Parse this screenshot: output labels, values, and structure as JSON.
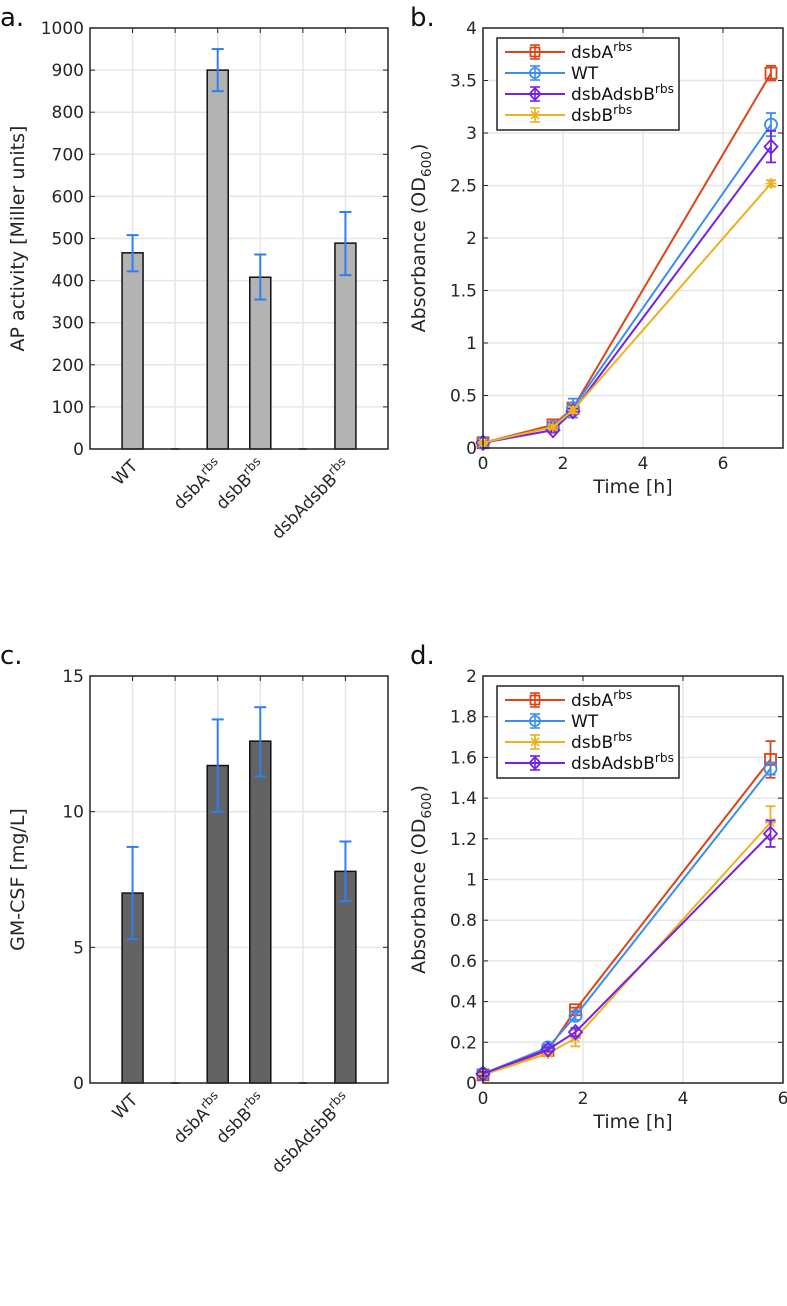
{
  "chart_data": [
    {
      "panel_label": "a.",
      "type": "bar",
      "ylabel": "AP activity [Miller units]",
      "ylim": [
        0,
        1000
      ],
      "yticks": [
        0,
        100,
        200,
        300,
        400,
        500,
        600,
        700,
        800,
        900,
        1000
      ],
      "categories": [
        {
          "base": "WT",
          "sup": ""
        },
        {
          "base": "",
          "sup": ""
        },
        {
          "base": "dsbA",
          "sup": "rbs"
        },
        {
          "base": "dsbB",
          "sup": "rbs"
        },
        {
          "base": "",
          "sup": ""
        },
        {
          "base": "dsbAdsbB",
          "sup": "rbs"
        }
      ],
      "values": [
        466,
        0,
        900,
        408,
        0,
        489
      ],
      "err_low": [
        422,
        0,
        850,
        355,
        0,
        413
      ],
      "err_high": [
        508,
        0,
        950,
        462,
        0,
        563
      ],
      "bar_color": "#b3b3b3",
      "error_color": "#2f7fee",
      "grid": true
    },
    {
      "panel_label": "b.",
      "type": "line",
      "xlabel": "Time [h]",
      "ylabel": {
        "base": "Absorbance (OD",
        "sub": "600",
        "end": ")"
      },
      "xlim": [
        0,
        7.5
      ],
      "ylim": [
        0,
        4
      ],
      "xticks": [
        0,
        2,
        4,
        6
      ],
      "yticks": [
        0,
        0.5,
        1,
        1.5,
        2,
        2.5,
        3,
        3.5,
        4
      ],
      "legend_position": "top-left",
      "grid": true,
      "series": [
        {
          "name": {
            "base": "dsbA",
            "sup": "rbs"
          },
          "color": "#dd4418",
          "marker": "square",
          "x": [
            0,
            1.75,
            2.25,
            7.2
          ],
          "y": [
            0.05,
            0.22,
            0.38,
            3.57
          ],
          "err": [
            0.01,
            0.02,
            0.03,
            0.07
          ]
        },
        {
          "name": {
            "base": "WT",
            "sup": ""
          },
          "color": "#3b8ef0",
          "marker": "circle",
          "x": [
            0,
            1.75,
            2.25,
            7.2
          ],
          "y": [
            0.05,
            0.2,
            0.38,
            3.08
          ],
          "err": [
            0.01,
            0.02,
            0.09,
            0.11
          ]
        },
        {
          "name": {
            "base": "dsbAdsbB",
            "sup": "rbs"
          },
          "color": "#7322e6",
          "marker": "diamond",
          "x": [
            0,
            1.75,
            2.25,
            7.2
          ],
          "y": [
            0.05,
            0.17,
            0.35,
            2.87
          ],
          "err": [
            0.01,
            0.02,
            0.03,
            0.15
          ]
        },
        {
          "name": {
            "base": "dsbB",
            "sup": "rbs"
          },
          "color": "#edb120",
          "marker": "asterisk",
          "x": [
            0,
            1.75,
            2.25,
            7.2
          ],
          "y": [
            0.05,
            0.2,
            0.36,
            2.52
          ],
          "err": [
            0.01,
            0.02,
            0.03,
            0.03
          ]
        }
      ]
    },
    {
      "panel_label": "c.",
      "type": "bar",
      "ylabel": "GM-CSF [mg/L]",
      "ylim": [
        0,
        15
      ],
      "yticks": [
        0,
        5,
        10,
        15
      ],
      "categories": [
        {
          "base": "WT",
          "sup": ""
        },
        {
          "base": "",
          "sup": ""
        },
        {
          "base": "dsbA",
          "sup": "rbs"
        },
        {
          "base": "dsbB",
          "sup": "rbs"
        },
        {
          "base": "",
          "sup": ""
        },
        {
          "base": "dsbAdsbB",
          "sup": "rbs"
        }
      ],
      "values": [
        7.0,
        0,
        11.7,
        12.6,
        0,
        7.8
      ],
      "err_low": [
        5.3,
        0,
        10.0,
        11.3,
        0,
        6.7
      ],
      "err_high": [
        8.7,
        0,
        13.4,
        13.85,
        0,
        8.9
      ],
      "bar_color": "#636363",
      "error_color": "#2f7fee",
      "grid": true
    },
    {
      "panel_label": "d.",
      "type": "line",
      "xlabel": "Time [h]",
      "ylabel": {
        "base": "Absorbance (OD",
        "sub": "600",
        "end": ")"
      },
      "xlim": [
        0,
        6
      ],
      "ylim": [
        0,
        2
      ],
      "xticks": [
        0,
        2,
        4,
        6
      ],
      "yticks": [
        0,
        0.2,
        0.4,
        0.6,
        0.8,
        1,
        1.2,
        1.4,
        1.6,
        1.8,
        2
      ],
      "legend_position": "top-left",
      "grid": true,
      "series": [
        {
          "name": {
            "base": "dsbA",
            "sup": "rbs"
          },
          "color": "#dd4418",
          "marker": "square",
          "x": [
            0,
            1.3,
            1.85,
            5.75
          ],
          "y": [
            0.04,
            0.16,
            0.36,
            1.59
          ],
          "err": [
            0.01,
            0.01,
            0.01,
            0.09
          ]
        },
        {
          "name": {
            "base": "WT",
            "sup": ""
          },
          "color": "#3b8ef0",
          "marker": "circle",
          "x": [
            0,
            1.3,
            1.85,
            5.75
          ],
          "y": [
            0.045,
            0.175,
            0.33,
            1.545
          ],
          "err": [
            0.01,
            0.01,
            0.02,
            0.03
          ]
        },
        {
          "name": {
            "base": "dsbB",
            "sup": "rbs"
          },
          "color": "#edb120",
          "marker": "asterisk",
          "x": [
            0,
            1.3,
            1.85,
            5.75
          ],
          "y": [
            0.04,
            0.145,
            0.22,
            1.28
          ],
          "err": [
            0.01,
            0.01,
            0.04,
            0.08
          ]
        },
        {
          "name": {
            "base": "dsbAdsbB",
            "sup": "rbs"
          },
          "color": "#7322e6",
          "marker": "diamond",
          "x": [
            0,
            1.3,
            1.85,
            5.75
          ],
          "y": [
            0.045,
            0.165,
            0.25,
            1.225
          ],
          "err": [
            0.01,
            0.01,
            0.02,
            0.065
          ]
        }
      ]
    }
  ]
}
